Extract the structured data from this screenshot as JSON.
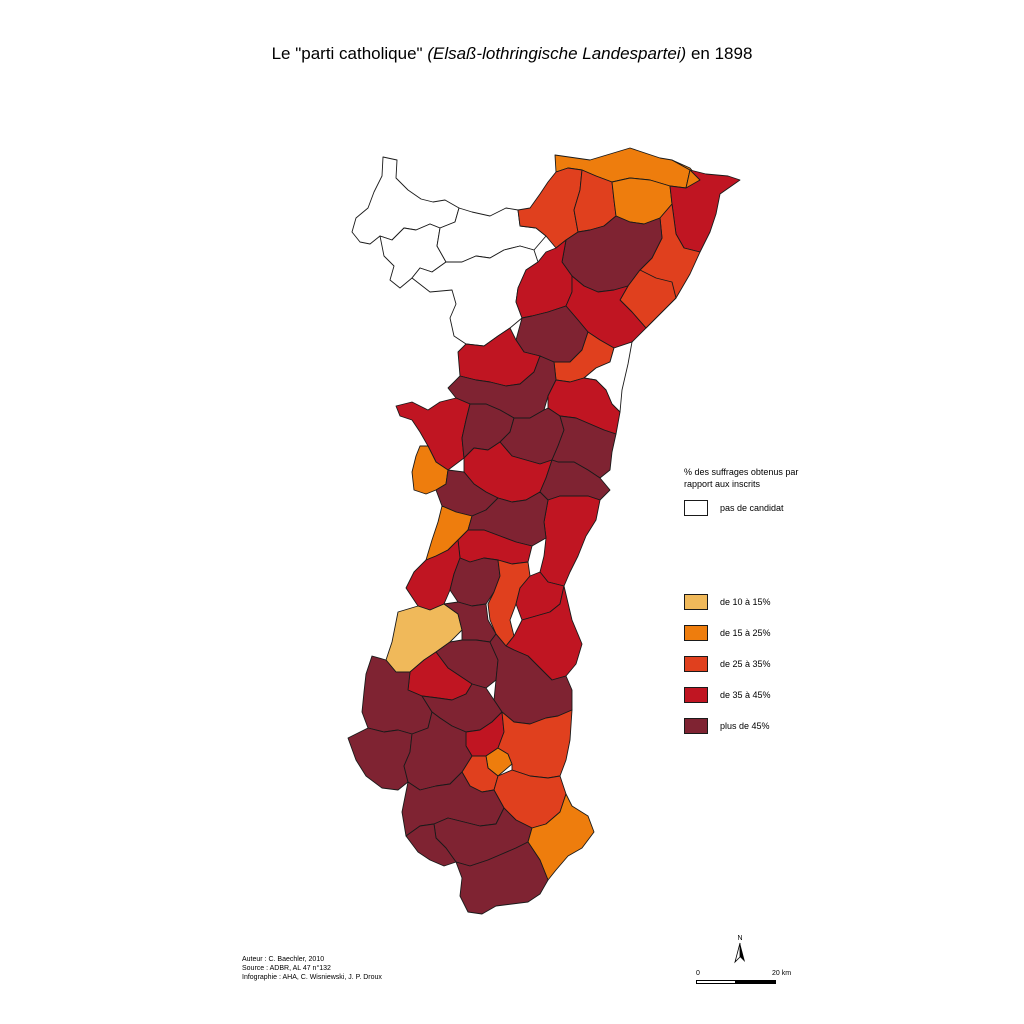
{
  "title": {
    "prefix": "Le \"parti catholique\"",
    "italic": "(Elsaß-lothringische Landespartei)",
    "suffix": "en 1898"
  },
  "colors": {
    "none": "#ffffff",
    "c10_15": "#f0b95a",
    "c15_25": "#ee7d0d",
    "c25_35": "#e0401e",
    "c35_45": "#c01522",
    "c45": "#7f2332"
  },
  "legend": {
    "heading_line1": "% des suffrages obtenus par",
    "heading_line2": "rapport aux inscrits",
    "items": [
      {
        "key": "none",
        "label": "pas de candidat"
      },
      {
        "key": "c10_15",
        "label": "de 10 à 15%"
      },
      {
        "key": "c15_25",
        "label": "de 15 à 25%"
      },
      {
        "key": "c25_35",
        "label": "de 25 à 35%"
      },
      {
        "key": "c35_45",
        "label": "de 35 à 45%"
      },
      {
        "key": "c45",
        "label": "plus de 45%"
      }
    ]
  },
  "credits": {
    "author": "Auteur : C. Baechler, 2010",
    "source": "Source : ADBR, AL 47 n°132",
    "infographics": "Infographie : AHA, C. Wisniewski, J. P. Droux"
  },
  "north_label": "N",
  "scale": {
    "start": "0",
    "end": "20 km"
  },
  "regions": [
    {
      "cls": "none"
    },
    {
      "cls": "none"
    },
    {
      "cls": "none"
    },
    {
      "cls": "none"
    },
    {
      "cls": "c15_25"
    },
    {
      "cls": "c25_35"
    },
    {
      "cls": "c25_35"
    },
    {
      "cls": "c15_25"
    },
    {
      "cls": "c15_25"
    },
    {
      "cls": "c35_45"
    },
    {
      "cls": "c25_35"
    },
    {
      "cls": "c45"
    },
    {
      "cls": "c25_35"
    },
    {
      "cls": "c35_45"
    },
    {
      "cls": "c35_45"
    },
    {
      "cls": "c45"
    },
    {
      "cls": "c25_35"
    },
    {
      "cls": "none"
    },
    {
      "cls": "c35_45"
    },
    {
      "cls": "c45"
    },
    {
      "cls": "c35_45"
    },
    {
      "cls": "c35_45"
    },
    {
      "cls": "c45"
    },
    {
      "cls": "c45"
    },
    {
      "cls": "c45"
    },
    {
      "cls": "c15_25"
    },
    {
      "cls": "c35_45"
    },
    {
      "cls": "c45"
    },
    {
      "cls": "c45"
    },
    {
      "cls": "c15_25"
    },
    {
      "cls": "c35_45"
    },
    {
      "cls": "c45"
    },
    {
      "cls": "c35_45"
    },
    {
      "cls": "c35_45"
    },
    {
      "cls": "c45"
    },
    {
      "cls": "c25_35"
    },
    {
      "cls": "c35_45"
    },
    {
      "cls": "c10_15"
    },
    {
      "cls": "c45"
    },
    {
      "cls": "c35_45"
    },
    {
      "cls": "c45"
    },
    {
      "cls": "c35_45"
    },
    {
      "cls": "c45"
    },
    {
      "cls": "c45"
    },
    {
      "cls": "c45"
    },
    {
      "cls": "c45"
    },
    {
      "cls": "c35_45"
    },
    {
      "cls": "c15_25"
    },
    {
      "cls": "c25_35"
    },
    {
      "cls": "c25_35"
    },
    {
      "cls": "c25_35"
    },
    {
      "cls": "c45"
    },
    {
      "cls": "c45"
    },
    {
      "cls": "c45"
    },
    {
      "cls": "c15_25"
    },
    {
      "cls": "c45"
    },
    {
      "cls": "c45"
    }
  ]
}
